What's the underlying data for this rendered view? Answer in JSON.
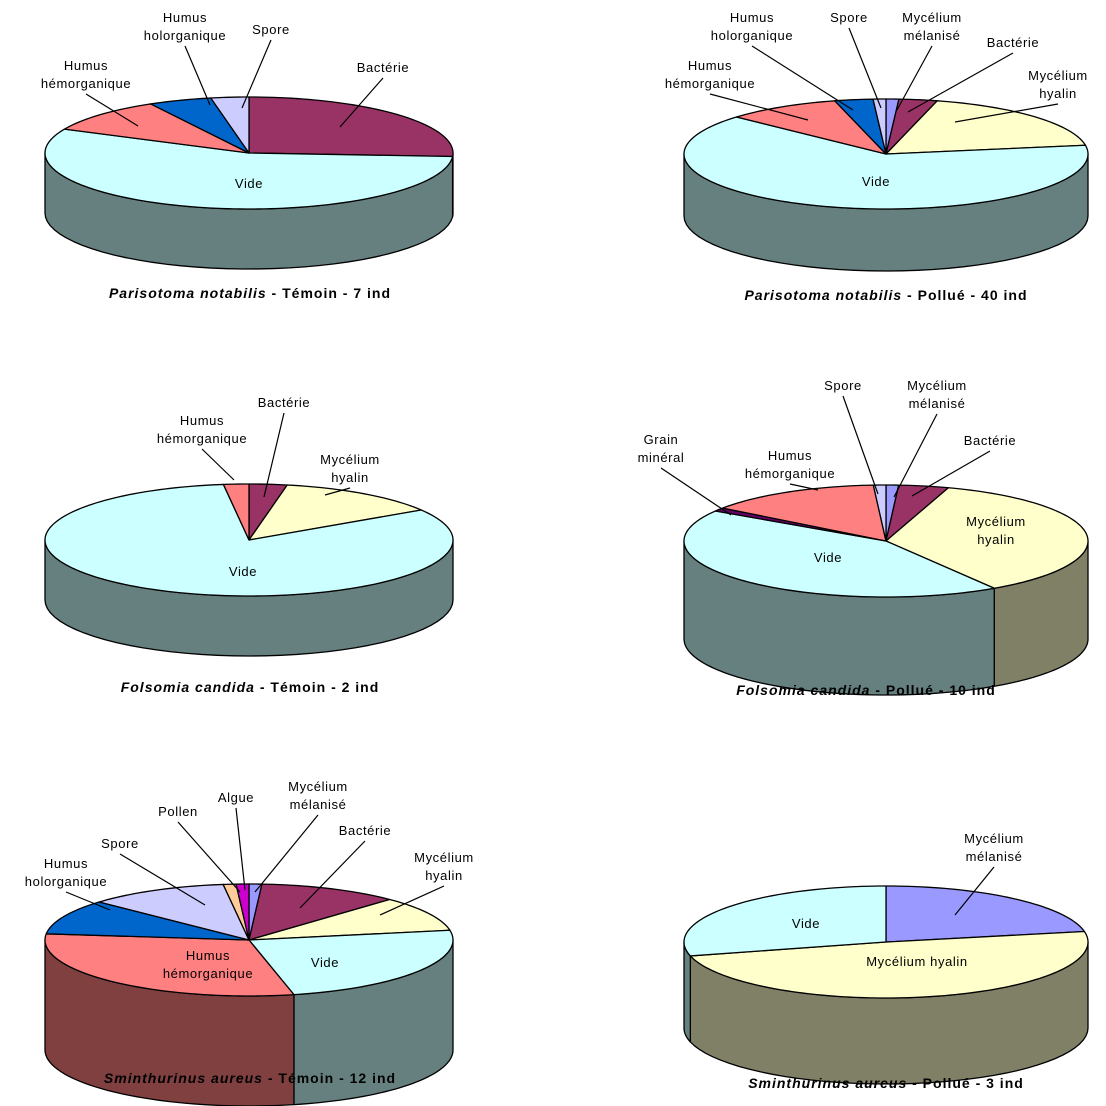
{
  "chart_data": [
    {
      "type": "pie",
      "caption": {
        "species": "Parisotoma notabilis",
        "rest": " - Témoin - 7 ind"
      },
      "slices": [
        {
          "name": "Bactérie",
          "value": 26,
          "color": "#993366",
          "label": [
            "Bactérie"
          ]
        },
        {
          "name": "Vide",
          "value": 56,
          "color": "#CCFFFF",
          "label": [
            "Vide"
          ]
        },
        {
          "name": "Humus hémorganique",
          "value": 10,
          "color": "#FF8080",
          "label": [
            "Humus",
            "hémorganique"
          ]
        },
        {
          "name": "Humus holorganique",
          "value": 5,
          "color": "#0066CC",
          "label": [
            "Humus",
            "holorganique"
          ]
        },
        {
          "name": "Spore",
          "value": 3,
          "color": "#CCCCFF",
          "label": [
            "Spore"
          ]
        }
      ]
    },
    {
      "type": "pie",
      "caption": {
        "species": "Parisotoma notabilis",
        "rest": " - Pollué - 40 ind"
      },
      "slices": [
        {
          "name": "Mycélium mélanisé",
          "value": 1,
          "color": "#9999FF",
          "label": [
            "Mycélium",
            "mélanisé"
          ]
        },
        {
          "name": "Bactérie",
          "value": 3,
          "color": "#993366",
          "label": [
            "Bactérie"
          ]
        },
        {
          "name": "Mycélium hyalin",
          "value": 18,
          "color": "#FFFFCC",
          "label": [
            "Mycélium",
            "hyalin"
          ]
        },
        {
          "name": "Vide",
          "value": 63,
          "color": "#CCFFFF",
          "label": [
            "Vide"
          ]
        },
        {
          "name": "Humus hémorganique",
          "value": 9,
          "color": "#FF8080",
          "label": [
            "Humus",
            "hémorganique"
          ]
        },
        {
          "name": "Humus holorganique",
          "value": 3,
          "color": "#0066CC",
          "label": [
            "Humus",
            "holorganique"
          ]
        },
        {
          "name": "Spore",
          "value": 1,
          "color": "#CCCCFF",
          "label": [
            "Spore"
          ]
        }
      ]
    },
    {
      "type": "pie",
      "caption": {
        "species": "Folsomia candida",
        "rest": " - Témoin - 2 ind"
      },
      "slices": [
        {
          "name": "Bactérie",
          "value": 3,
          "color": "#993366",
          "label": [
            "Bactérie"
          ]
        },
        {
          "name": "Mycélium hyalin",
          "value": 13,
          "color": "#FFFFCC",
          "label": [
            "Mycélium",
            "hyalin"
          ]
        },
        {
          "name": "Vide",
          "value": 82,
          "color": "#CCFFFF",
          "label": [
            "Vide"
          ]
        },
        {
          "name": "Humus hémorganique",
          "value": 2,
          "color": "#FF8080",
          "label": [
            "Humus",
            "hémorganique"
          ]
        }
      ]
    },
    {
      "type": "pie",
      "caption": {
        "species": "Folsomia candida",
        "rest": " - Pollué - 10 ind"
      },
      "slices": [
        {
          "name": "Mycélium mélanisé",
          "value": 1,
          "color": "#9999FF",
          "label": [
            "Mycélium",
            "mélanisé"
          ]
        },
        {
          "name": "Bactérie",
          "value": 4,
          "color": "#993366",
          "label": [
            "Bactérie"
          ]
        },
        {
          "name": "Mycélium hyalin",
          "value": 36,
          "color": "#FFFFCC",
          "label": [
            "Mycélium",
            "hyalin"
          ]
        },
        {
          "name": "Vide",
          "value": 43,
          "color": "#CCFFFF",
          "label": [
            "Vide"
          ]
        },
        {
          "name": "Grain minéral",
          "value": 1,
          "color": "#660066",
          "label": [
            "Grain",
            "minéral"
          ]
        },
        {
          "name": "Humus hémorganique",
          "value": 14,
          "color": "#FF8080",
          "label": [
            "Humus",
            "hémorganique"
          ]
        },
        {
          "name": "Spore",
          "value": 1,
          "color": "#CCCCFF",
          "label": [
            "Spore"
          ]
        }
      ]
    },
    {
      "type": "pie",
      "caption": {
        "species": "Sminthurinus aureus",
        "rest": " - Témoin - 12 ind"
      },
      "slices": [
        {
          "name": "Mycélium mélanisé",
          "value": 1,
          "color": "#9999FF",
          "label": [
            "Mycélium",
            "mélanisé"
          ]
        },
        {
          "name": "Bactérie",
          "value": 11,
          "color": "#993366",
          "label": [
            "Bactérie"
          ]
        },
        {
          "name": "Mycélium hyalin",
          "value": 10,
          "color": "#FFFFCC",
          "label": [
            "Mycélium",
            "hyalin"
          ]
        },
        {
          "name": "Vide",
          "value": 24,
          "color": "#CCFFFF",
          "label": [
            "Vide"
          ]
        },
        {
          "name": "Humus hémorganique",
          "value": 30,
          "color": "#FF8080",
          "label": [
            "Humus",
            "hémorganique"
          ]
        },
        {
          "name": "Humus holorganique",
          "value": 10,
          "color": "#0066CC",
          "label": [
            "Humus",
            "holorganique"
          ]
        },
        {
          "name": "Spore",
          "value": 11,
          "color": "#CCCCFF",
          "label": [
            "Spore"
          ]
        },
        {
          "name": "Pollen",
          "value": 1,
          "color": "#FFCC99",
          "label": [
            "Pollen"
          ]
        },
        {
          "name": "Algue",
          "value": 1,
          "color": "#CC00CC",
          "label": [
            "Algue"
          ]
        }
      ]
    },
    {
      "type": "pie",
      "caption": {
        "species": "Sminthurinus aureus",
        "rest": " - Pollué - 3 ind"
      },
      "slices": [
        {
          "name": "Mycélium mélanisé",
          "value": 22,
          "color": "#9999FF",
          "label": [
            "Mycélium",
            "mélanisé"
          ]
        },
        {
          "name": "Mycélium hyalin",
          "value": 49,
          "color": "#FFFFCC",
          "label": [
            "Mycélium hyalin"
          ]
        },
        {
          "name": "Vide",
          "value": 29,
          "color": "#CCFFFF",
          "label": [
            "Vide"
          ]
        }
      ]
    }
  ]
}
